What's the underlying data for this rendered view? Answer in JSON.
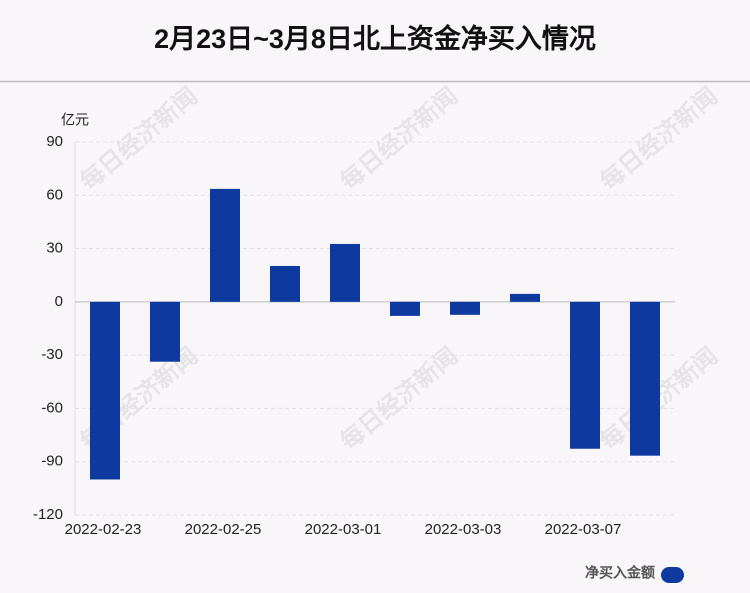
{
  "chart_data": {
    "type": "bar",
    "title": "2月23日~3月8日北上资金净买入情况",
    "y_unit": "亿元",
    "watermark": "每日经济新闻",
    "categories": [
      "2022-02-23",
      null,
      "2022-02-25",
      null,
      "2022-03-01",
      null,
      "2022-03-03",
      null,
      "2022-03-07",
      null
    ],
    "series": [
      {
        "name": "净买入金额",
        "color": "#0e3aa0",
        "values": [
          -100,
          -33.7,
          63.6,
          20.2,
          32.6,
          -7.9,
          -7.3,
          4.5,
          -82.7,
          -86.6
        ]
      }
    ],
    "ylim": [
      -120,
      90
    ],
    "yticks": [
      -120,
      -90,
      -60,
      -30,
      0,
      30,
      60,
      90
    ],
    "grid": true
  }
}
